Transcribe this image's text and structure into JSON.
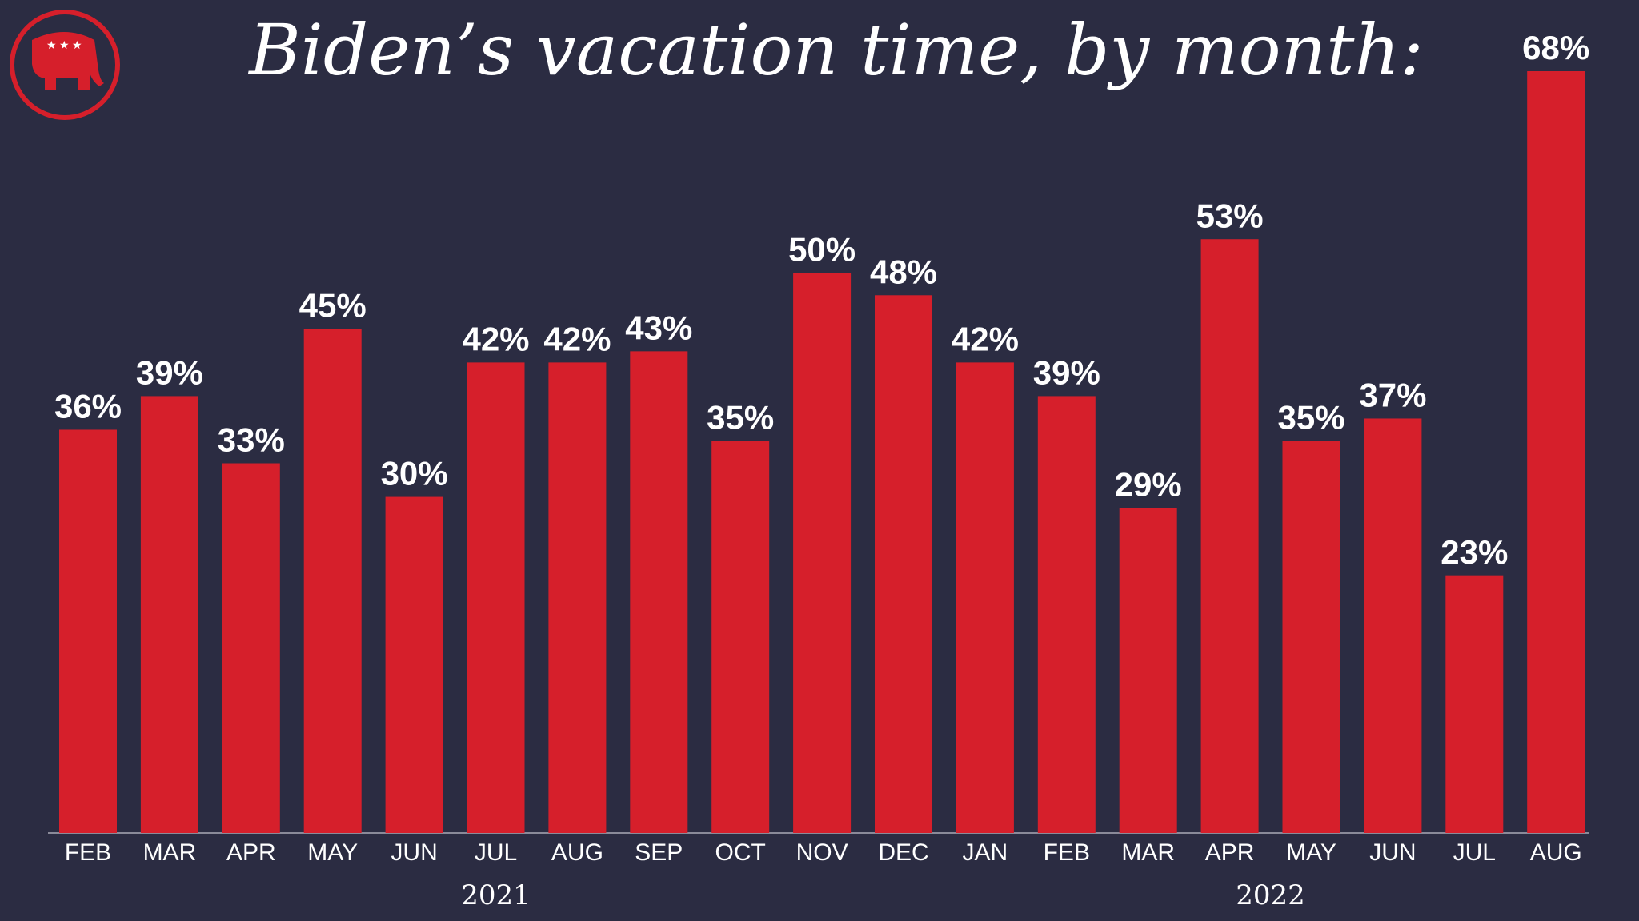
{
  "chart_data": {
    "type": "bar",
    "title": "Biden’s vacation time, by month:",
    "categories": [
      "FEB",
      "MAR",
      "APR",
      "MAY",
      "JUN",
      "JUL",
      "AUG",
      "SEP",
      "OCT",
      "NOV",
      "DEC",
      "JAN",
      "FEB",
      "MAR",
      "APR",
      "MAY",
      "JUN",
      "JUL",
      "AUG"
    ],
    "values": [
      36,
      39,
      33,
      45,
      30,
      42,
      42,
      43,
      35,
      50,
      48,
      42,
      39,
      29,
      53,
      35,
      37,
      23,
      68
    ],
    "value_labels": [
      "36%",
      "39%",
      "33%",
      "45%",
      "30%",
      "42%",
      "42%",
      "43%",
      "35%",
      "50%",
      "48%",
      "42%",
      "39%",
      "29%",
      "53%",
      "35%",
      "37%",
      "23%",
      "68%"
    ],
    "x_groups": [
      {
        "label": "2021",
        "count": 11
      },
      {
        "label": "2022",
        "count": 8
      }
    ],
    "color": "#d61f2b",
    "ylim": [
      0,
      68
    ]
  }
}
